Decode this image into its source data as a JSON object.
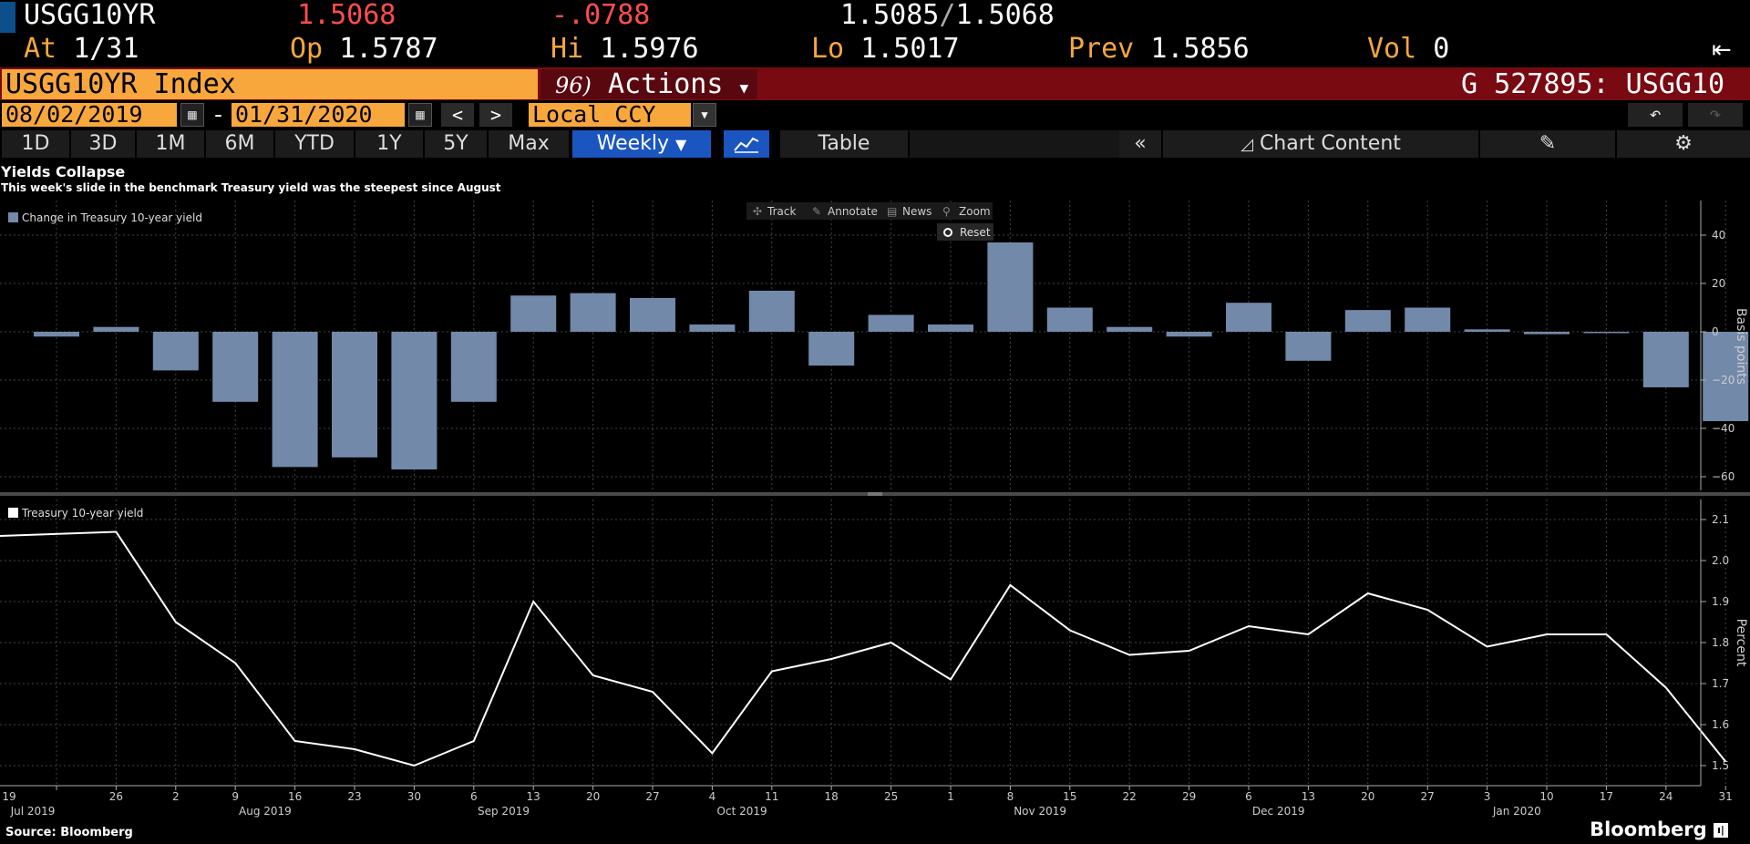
{
  "quote": {
    "ticker": "USGG10YR",
    "last": "1.5068",
    "change": "-.0788",
    "bid": "1.5085",
    "ask": "1.5068",
    "at_label": "At",
    "at_value": "1/31",
    "op_label": "Op",
    "op_value": "1.5787",
    "hi_label": "Hi",
    "hi_value": "1.5976",
    "lo_label": "Lo",
    "lo_value": "1.5017",
    "prev_label": "Prev",
    "prev_value": "1.5856",
    "vol_label": "Vol",
    "vol_value": "0"
  },
  "header": {
    "security": "USGG10YR Index",
    "actions_code": "96)",
    "actions_label": "Actions",
    "right_label": "G 527895: USGG10"
  },
  "controls": {
    "start_date": "08/02/2019",
    "date_sep": "-",
    "end_date": "01/31/2020",
    "currency": "Local CCY"
  },
  "tabs": {
    "ranges": [
      "1D",
      "3D",
      "1M",
      "6M",
      "YTD",
      "1Y",
      "5Y",
      "Max"
    ],
    "frequency": "Weekly",
    "table": "Table",
    "chart_content": "Chart Content"
  },
  "chart_tools": {
    "track": "Track",
    "annotate": "Annotate",
    "news": "News",
    "zoom": "Zoom",
    "reset": "Reset"
  },
  "footer": {
    "source": "Source: Bloomberg",
    "brand": "Bloomberg"
  },
  "colors": {
    "amber": "#f7a73c",
    "bar": "#7389aa",
    "header_red": "#7a0a12",
    "change_red": "#ff4d4d",
    "active_tab": "#1a55c0"
  },
  "chart_data": [
    {
      "type": "bar",
      "title": "Yields Collapse",
      "subtitle": "This week's slide in the benchmark Treasury yield was the steepest since August",
      "ylabel": "Basis points",
      "ylim": [
        -65,
        50
      ],
      "yticks": [
        40,
        20,
        0,
        -20,
        -40,
        -60
      ],
      "categories": [
        "19",
        "26",
        "2",
        "9",
        "16",
        "23",
        "30",
        "6",
        "13",
        "20",
        "27",
        "4",
        "11",
        "18",
        "25",
        "1",
        "8",
        "15",
        "22",
        "29",
        "6",
        "13",
        "20",
        "27",
        "3",
        "10",
        "17",
        "24",
        "31"
      ],
      "month_labels": [
        {
          "label": "Jul 2019",
          "at": 0.5
        },
        {
          "label": "Aug 2019",
          "at": 3.5
        },
        {
          "label": "Sep 2019",
          "at": 7.5
        },
        {
          "label": "Oct 2019",
          "at": 11.5
        },
        {
          "label": "Nov 2019",
          "at": 16.5
        },
        {
          "label": "Dec 2019",
          "at": 20.5
        },
        {
          "label": "Jan 2020",
          "at": 24.5
        }
      ],
      "series": [
        {
          "name": "Change in Treasury 10-year yield",
          "values": [
            -2,
            2,
            -16,
            -29,
            -56,
            -52,
            -57,
            -29,
            15,
            16,
            14,
            3,
            17,
            -14,
            7,
            3,
            37,
            10,
            2,
            -2,
            12,
            -12,
            9,
            10,
            1,
            -1,
            0,
            -23,
            -37
          ]
        }
      ]
    },
    {
      "type": "line",
      "ylabel": "Percent",
      "ylim": [
        1.45,
        2.13
      ],
      "yticks": [
        2.1,
        2.0,
        1.9,
        1.8,
        1.7,
        1.6,
        1.5
      ],
      "series": [
        {
          "name": "Treasury 10-year yield",
          "start": 2.06,
          "values": [
            2.07,
            1.85,
            1.75,
            1.56,
            1.54,
            1.5,
            1.56,
            1.9,
            1.72,
            1.68,
            1.53,
            1.73,
            1.76,
            1.8,
            1.71,
            1.94,
            1.83,
            1.77,
            1.78,
            1.84,
            1.82,
            1.92,
            1.88,
            1.79,
            1.82,
            1.82,
            1.69,
            1.51
          ]
        }
      ]
    }
  ]
}
